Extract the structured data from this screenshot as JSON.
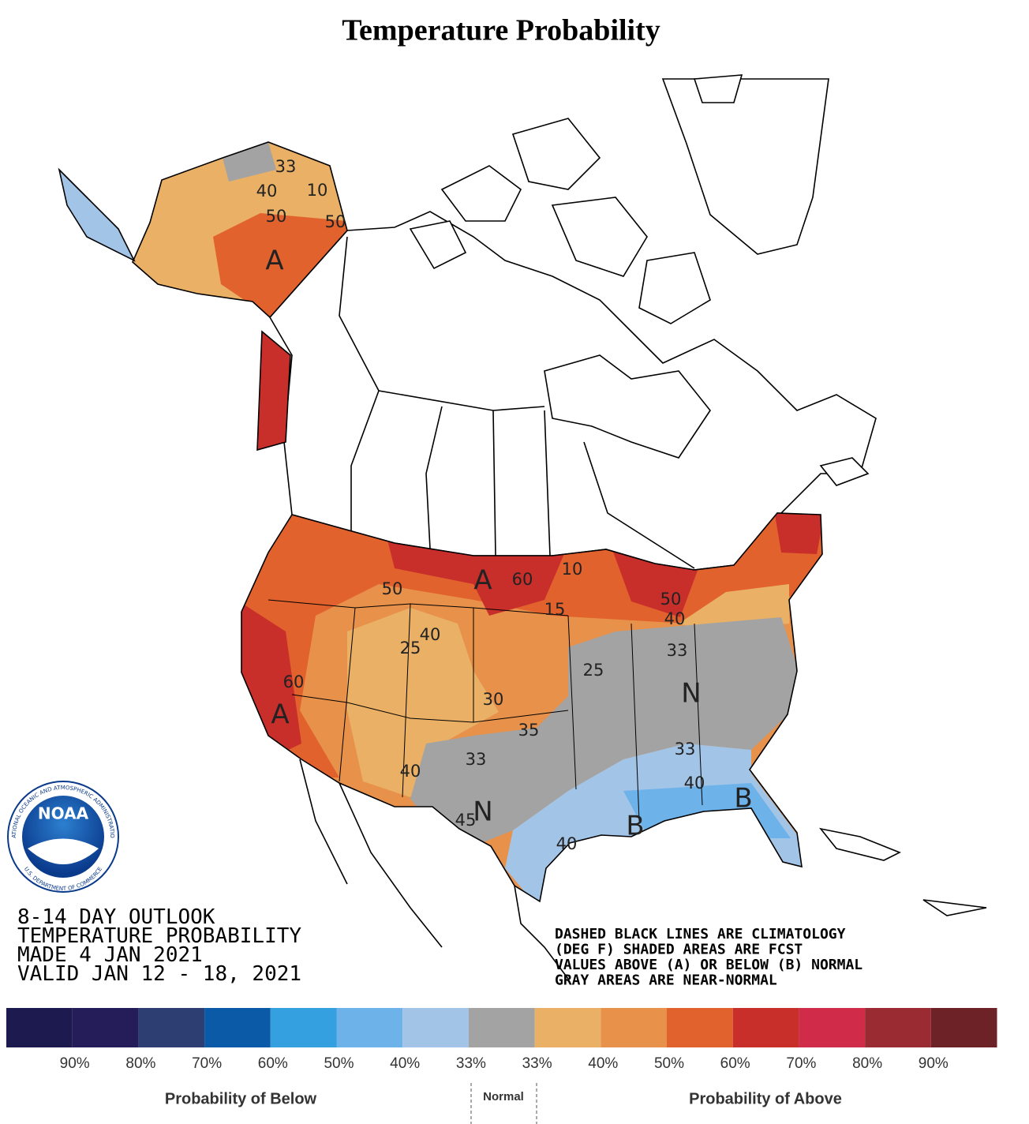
{
  "title": "Temperature Probability",
  "logo": {
    "name": "NOAA",
    "ring_top": "NATIONAL OCEANIC AND ATMOSPHERIC ADMINISTRATION",
    "ring_bottom": "U.S. DEPARTMENT OF COMMERCE"
  },
  "outlook": [
    "8-14 DAY OUTLOOK",
    "TEMPERATURE PROBABILITY",
    "MADE  4 JAN 2021",
    "VALID  JAN 12 - 18, 2021"
  ],
  "notes": [
    "DASHED BLACK LINES ARE CLIMATOLOGY",
    "(DEG F) SHADED AREAS ARE FCST",
    "VALUES ABOVE (A) OR BELOW (B) NORMAL",
    "GRAY AREAS ARE NEAR-NORMAL"
  ],
  "map_labels": [
    "33",
    "40",
    "10",
    "50",
    "50",
    "A",
    "50",
    "A",
    "60",
    "10",
    "15",
    "50",
    "40",
    "33",
    "40",
    "25",
    "60",
    "A",
    "30",
    "35",
    "33",
    "25",
    "N",
    "33",
    "40",
    "B",
    "B",
    "40",
    "45",
    "N",
    "40"
  ],
  "legend": {
    "colors": [
      "#1c1a4e",
      "#241d5a",
      "#2d3f72",
      "#0a5aa8",
      "#35a0e0",
      "#6eb2ea",
      "#a2c4e6",
      "#a3a3a3",
      "#e9b066",
      "#e8914a",
      "#e2622e",
      "#c82f2b",
      "#d02c4a",
      "#9b2b33",
      "#6c2226"
    ],
    "labels": [
      "90%",
      "80%",
      "70%",
      "60%",
      "50%",
      "40%",
      "33%",
      "33%",
      "40%",
      "50%",
      "60%",
      "70%",
      "80%",
      "90%"
    ],
    "below": "Probability of Below",
    "normal": "Normal",
    "above": "Probability of Above"
  }
}
